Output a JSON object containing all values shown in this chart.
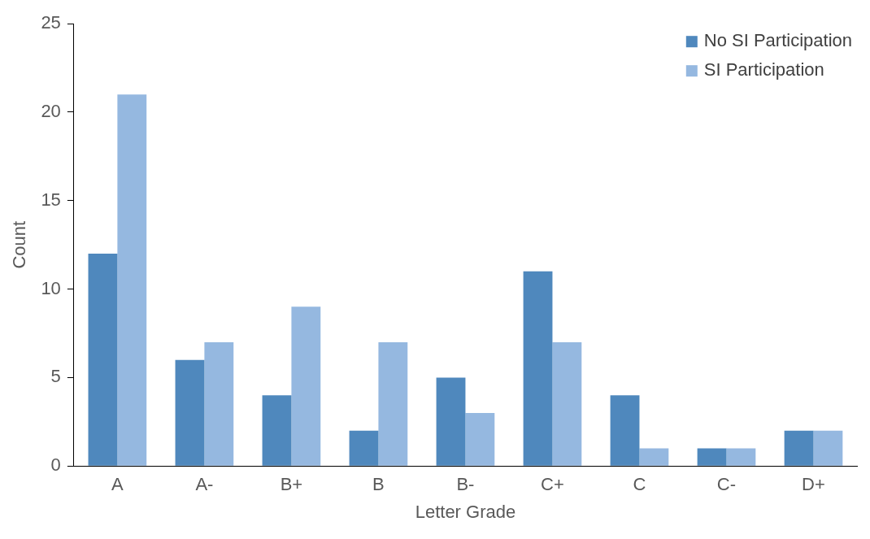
{
  "chart_data": {
    "type": "bar",
    "xlabel": "Letter Grade",
    "ylabel": "Count",
    "categories": [
      "A",
      "A-",
      "B+",
      "B",
      "B-",
      "C+",
      "C",
      "C-",
      "D+"
    ],
    "series": [
      {
        "name": "No SI Participation",
        "color": "#4f88bd",
        "values": [
          12,
          6,
          4,
          2,
          5,
          11,
          4,
          1,
          2
        ]
      },
      {
        "name": "SI Participation",
        "color": "#95b8e0",
        "values": [
          21,
          7,
          9,
          7,
          3,
          7,
          1,
          1,
          2
        ]
      }
    ],
    "ylim": [
      0,
      25
    ],
    "yticks": [
      0,
      5,
      10,
      15,
      20,
      25
    ],
    "grid": false,
    "legend": "top right"
  }
}
